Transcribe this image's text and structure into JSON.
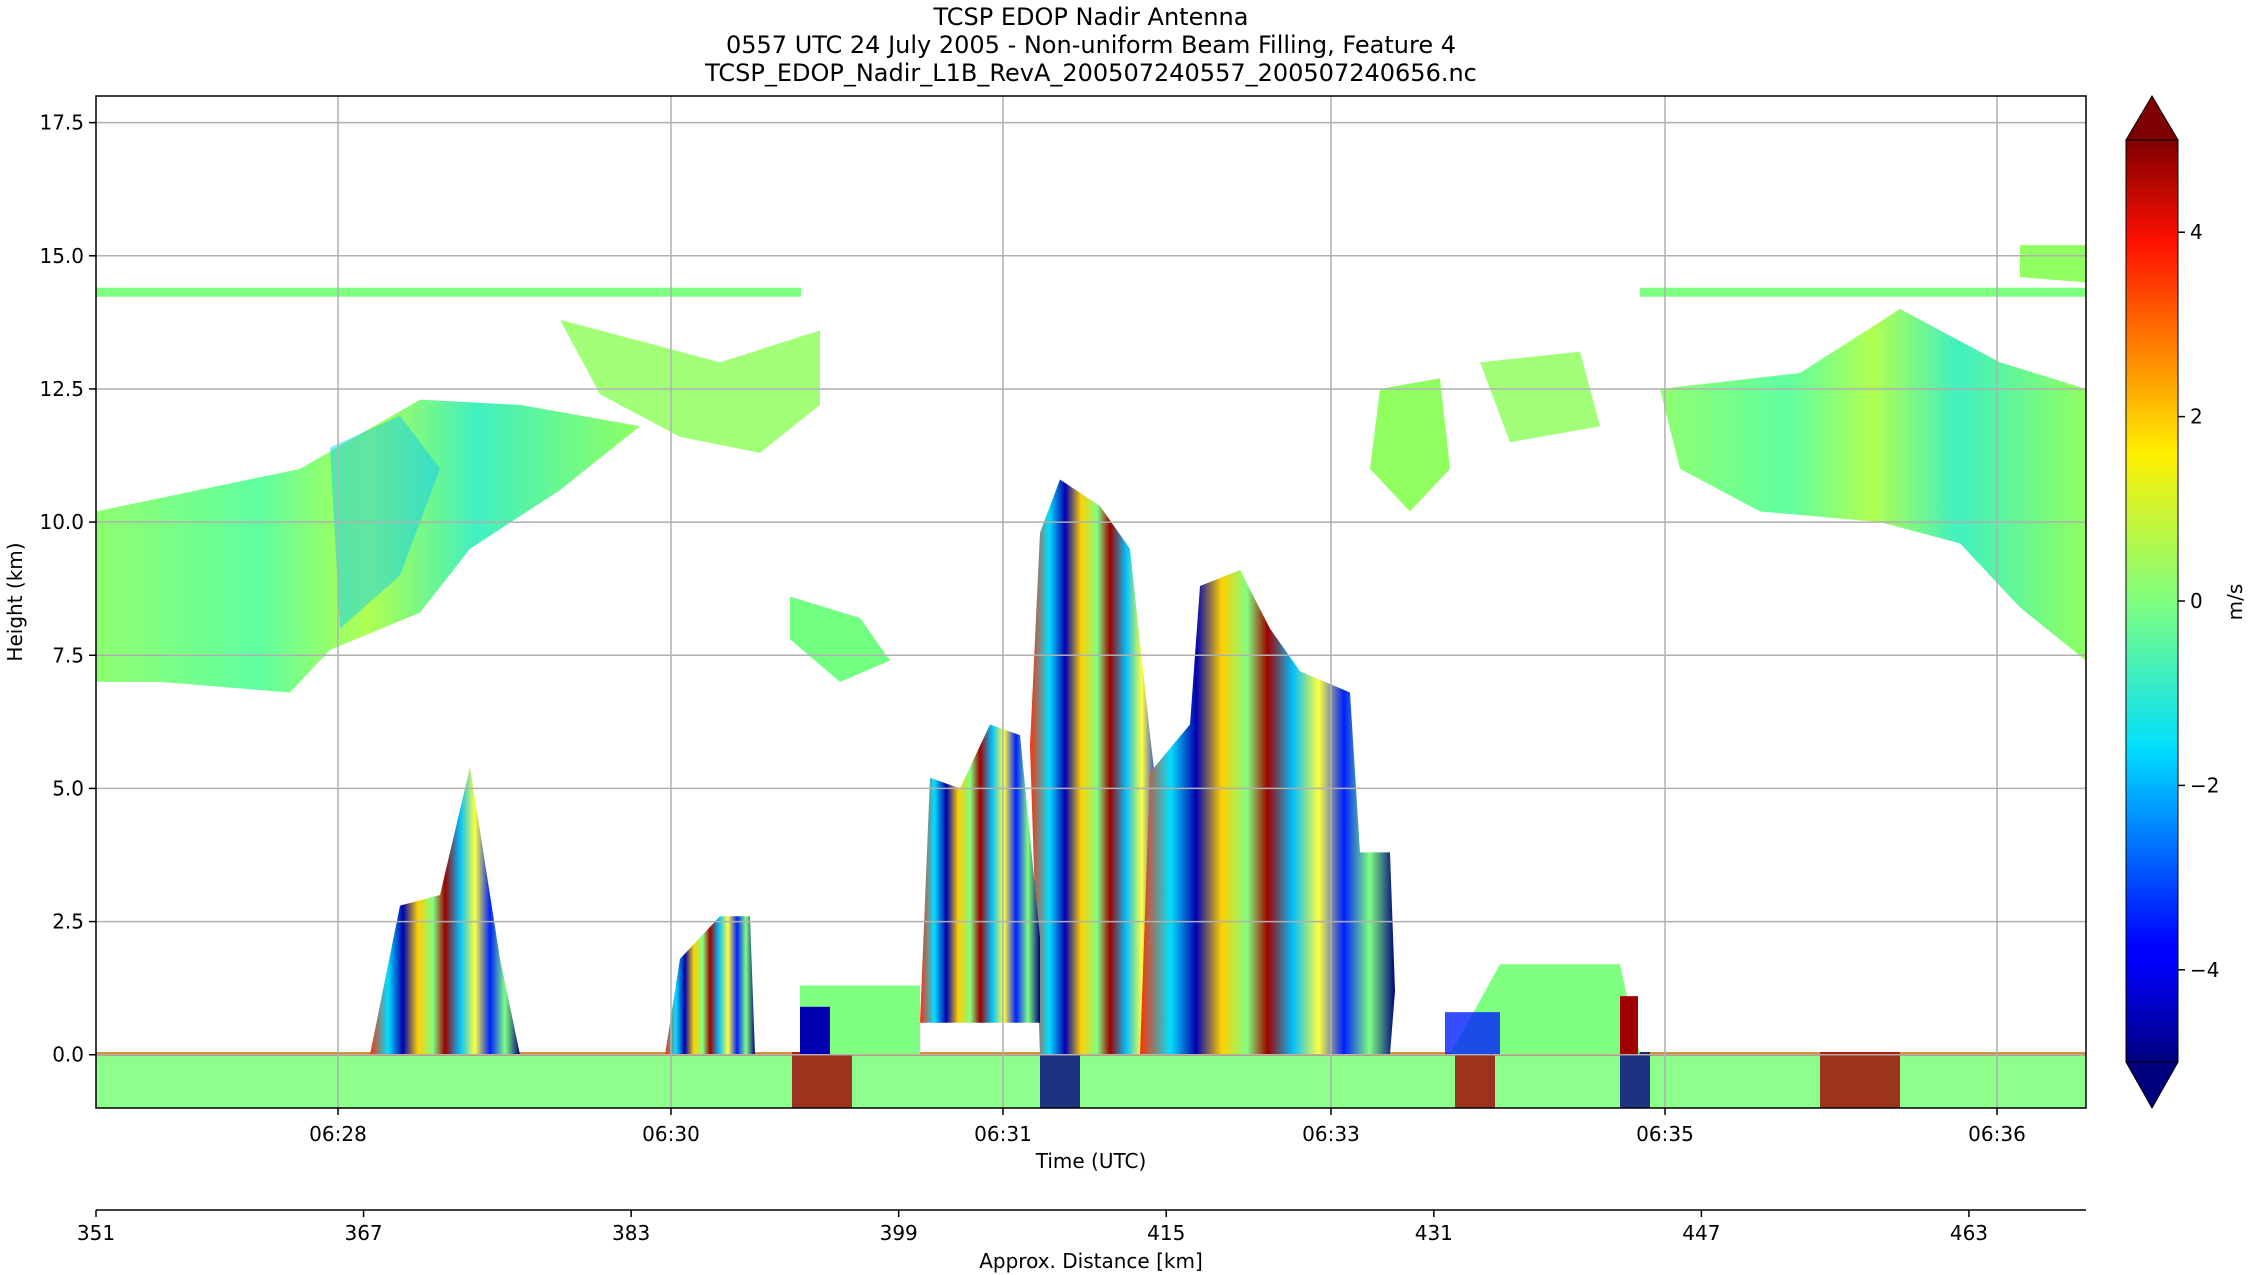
{
  "chart_data": {
    "type": "heatmap",
    "title": [
      "TCSP EDOP Nadir Antenna",
      "0557 UTC 24 July 2005 - Non-uniform Beam Filling, Feature 4",
      "TCSP_EDOP_Nadir_L1B_RevA_200507240557_200507240656.nc"
    ],
    "xlabel": "Time (UTC)",
    "ylabel": "Height (km)",
    "x_ticks": [
      "06:28",
      "06:30",
      "06:31",
      "06:31",
      "06:33",
      "06:35",
      "06:36"
    ],
    "y_ticks": [
      "0.0",
      "2.5",
      "5.0",
      "7.5",
      "10.0",
      "12.5",
      "15.0",
      "17.5"
    ],
    "ylim": [
      -1.0,
      18.0
    ],
    "grid": true,
    "secondary_xaxis": {
      "label": "Approx. Distance [km]",
      "ticks": [
        "351",
        "367",
        "383",
        "399",
        "415",
        "431",
        "447",
        "463"
      ],
      "xlim": [
        351,
        470
      ]
    },
    "colorbar": {
      "label": "m/s",
      "ticks": [
        "−4",
        "−2",
        "0",
        "2",
        "4"
      ],
      "range": [
        -5,
        5
      ],
      "colormap": "jet",
      "extend": "both"
    },
    "features": [
      {
        "name": "surface echo band",
        "height_km": [
          -1.0,
          0.0
        ]
      },
      {
        "name": "left anvil cloud",
        "height_km": [
          7.0,
          12.5
        ]
      },
      {
        "name": "right anvil cloud",
        "height_km": [
          7.5,
          14.3
        ]
      },
      {
        "name": "tall convective cell A",
        "height_km": [
          0.0,
          10.8
        ]
      },
      {
        "name": "tall convective cell B",
        "height_km": [
          0.0,
          9.0
        ]
      },
      {
        "name": "shallow convective cells",
        "height_km": [
          0.0,
          5.4
        ]
      },
      {
        "name": "cirrus layer",
        "height_km": [
          14.2,
          14.4
        ]
      }
    ]
  },
  "colors": {
    "background": "#ffffff",
    "grid": "#b0b0b0",
    "jet_low": "#00007f",
    "jet_mid": "#7fff7f",
    "jet_high": "#7f0000"
  }
}
